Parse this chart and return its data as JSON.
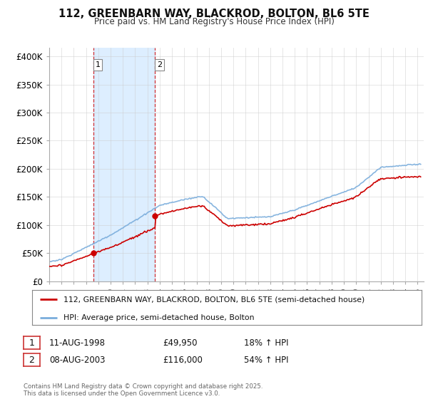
{
  "title": "112, GREENBARN WAY, BLACKROD, BOLTON, BL6 5TE",
  "subtitle": "Price paid vs. HM Land Registry's House Price Index (HPI)",
  "ylabel_ticks": [
    "£0",
    "£50K",
    "£100K",
    "£150K",
    "£200K",
    "£250K",
    "£300K",
    "£350K",
    "£400K"
  ],
  "ytick_values": [
    0,
    50000,
    100000,
    150000,
    200000,
    250000,
    300000,
    350000,
    400000
  ],
  "ylim": [
    0,
    415000
  ],
  "xlim_start": 1995.0,
  "xlim_end": 2025.5,
  "red_line_color": "#cc0000",
  "blue_line_color": "#7aaddc",
  "shaded_color": "#ddeeff",
  "vline_color": "#cc0000",
  "marker1_date": 1998.61,
  "marker2_date": 2003.61,
  "marker1_price": 49950,
  "marker2_price": 116000,
  "legend_label_red": "112, GREENBARN WAY, BLACKROD, BOLTON, BL6 5TE (semi-detached house)",
  "legend_label_blue": "HPI: Average price, semi-detached house, Bolton",
  "annotation1_label": "1",
  "annotation2_label": "2",
  "table_row1": [
    "1",
    "11-AUG-1998",
    "£49,950",
    "18% ↑ HPI"
  ],
  "table_row2": [
    "2",
    "08-AUG-2003",
    "£116,000",
    "54% ↑ HPI"
  ],
  "footnote": "Contains HM Land Registry data © Crown copyright and database right 2025.\nThis data is licensed under the Open Government Licence v3.0.",
  "bg_color": "#ffffff",
  "grid_color": "#cccccc",
  "xtick_years": [
    1995,
    1996,
    1997,
    1998,
    1999,
    2000,
    2001,
    2002,
    2003,
    2004,
    2005,
    2006,
    2007,
    2008,
    2009,
    2010,
    2011,
    2012,
    2013,
    2014,
    2015,
    2016,
    2017,
    2018,
    2019,
    2020,
    2021,
    2022,
    2023,
    2024,
    2025
  ]
}
